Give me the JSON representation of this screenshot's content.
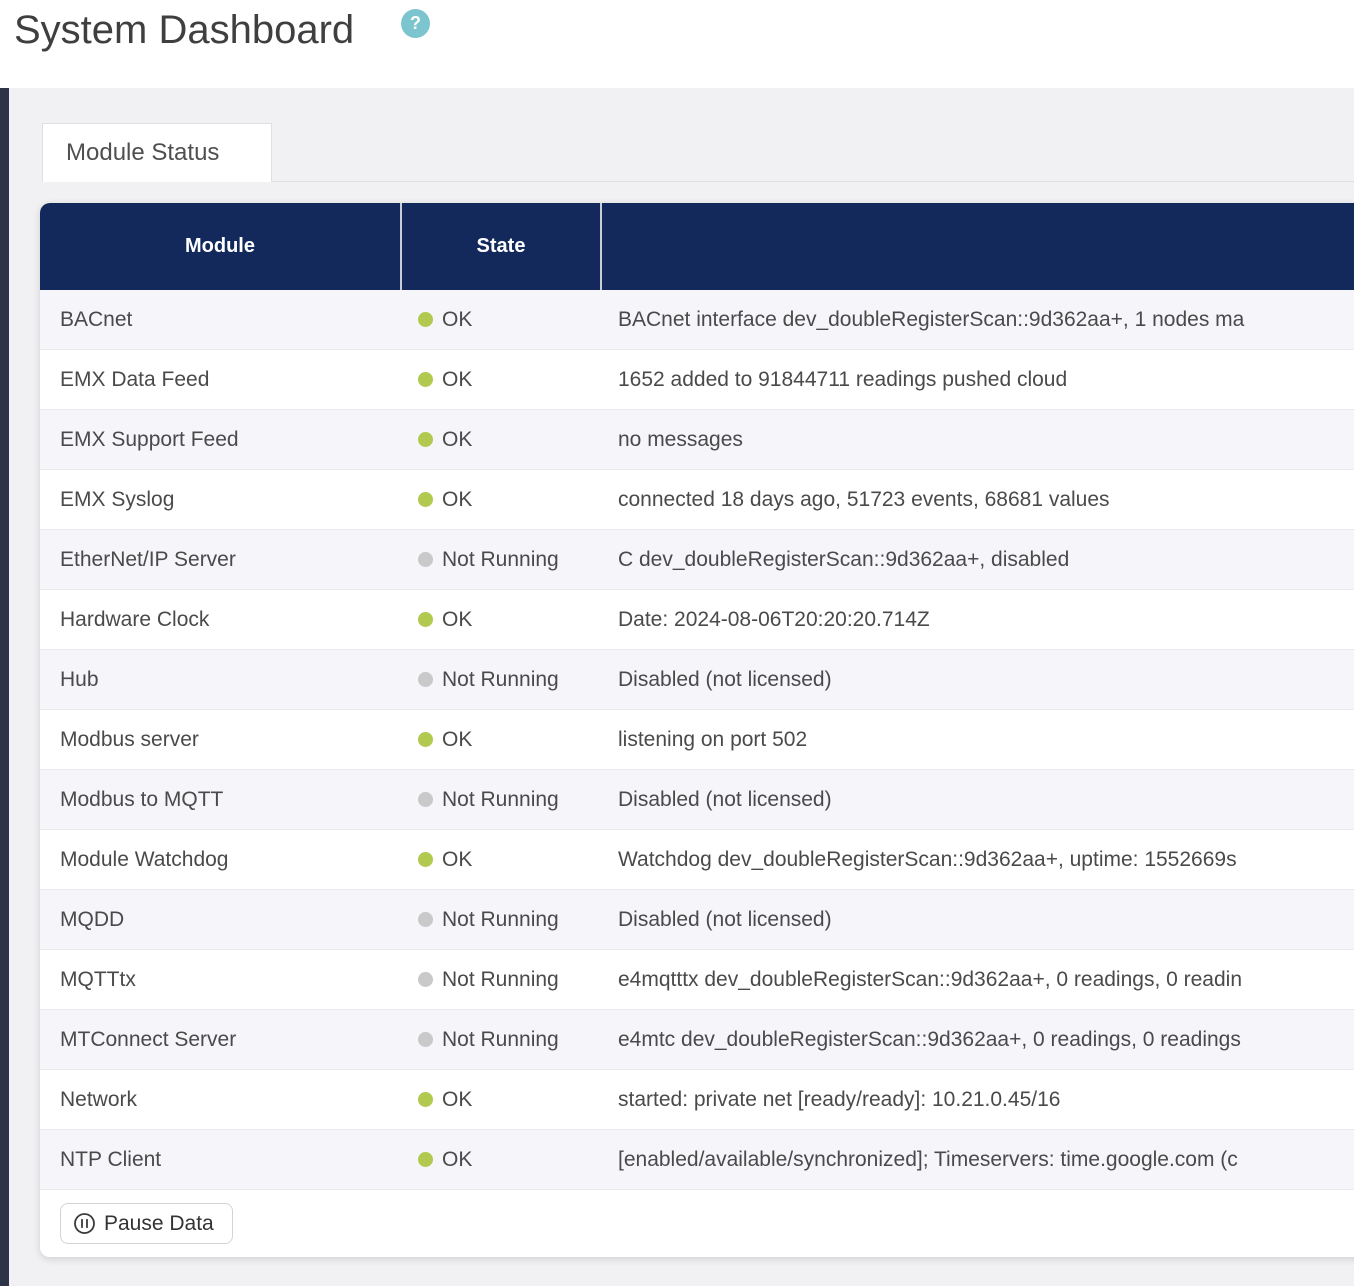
{
  "page": {
    "title": "System Dashboard",
    "help": "?"
  },
  "tab": {
    "label": "Module Status"
  },
  "table": {
    "header": {
      "module": "Module",
      "state": "State",
      "message": ""
    },
    "rows": [
      {
        "module": "BACnet",
        "state": "OK",
        "status": "ok",
        "message": "BACnet interface dev_doubleRegisterScan::9d362aa+, 1 nodes ma"
      },
      {
        "module": "EMX Data Feed",
        "state": "OK",
        "status": "ok",
        "message": "1652 added to 91844711 readings pushed cloud"
      },
      {
        "module": "EMX Support Feed",
        "state": "OK",
        "status": "ok",
        "message": "no messages"
      },
      {
        "module": "EMX Syslog",
        "state": "OK",
        "status": "ok",
        "message": "connected 18 days ago, 51723 events, 68681 values"
      },
      {
        "module": "EtherNet/IP Server",
        "state": "Not Running",
        "status": "not_running",
        "message": "C dev_doubleRegisterScan::9d362aa+, disabled"
      },
      {
        "module": "Hardware Clock",
        "state": "OK",
        "status": "ok",
        "message": "Date: 2024-08-06T20:20:20.714Z"
      },
      {
        "module": "Hub",
        "state": "Not Running",
        "status": "not_running",
        "message": "Disabled (not licensed)"
      },
      {
        "module": "Modbus server",
        "state": "OK",
        "status": "ok",
        "message": "listening on port 502"
      },
      {
        "module": "Modbus to MQTT",
        "state": "Not Running",
        "status": "not_running",
        "message": "Disabled (not licensed)"
      },
      {
        "module": "Module Watchdog",
        "state": "OK",
        "status": "ok",
        "message": "Watchdog dev_doubleRegisterScan::9d362aa+, uptime: 1552669s"
      },
      {
        "module": "MQDD",
        "state": "Not Running",
        "status": "not_running",
        "message": "Disabled (not licensed)"
      },
      {
        "module": "MQTTtx",
        "state": "Not Running",
        "status": "not_running",
        "message": "e4mqtttx dev_doubleRegisterScan::9d362aa+, 0 readings, 0 readin"
      },
      {
        "module": "MTConnect Server",
        "state": "Not Running",
        "status": "not_running",
        "message": "e4mtc dev_doubleRegisterScan::9d362aa+, 0 readings, 0 readings"
      },
      {
        "module": "Network",
        "state": "OK",
        "status": "ok",
        "message": "started: private net [ready/ready]: 10.21.0.45/16"
      },
      {
        "module": "NTP Client",
        "state": "OK",
        "status": "ok",
        "message": "[enabled/available/synchronized]; Timeservers: time.google.com (c"
      }
    ]
  },
  "footer": {
    "pause_button": "Pause Data"
  },
  "colors": {
    "header_bg": "#13295b",
    "status_ok": "#b2c94f",
    "status_not_running": "#c9c9c9",
    "help_bg": "#7cc5cf",
    "accent_strip": "#2d3448"
  }
}
